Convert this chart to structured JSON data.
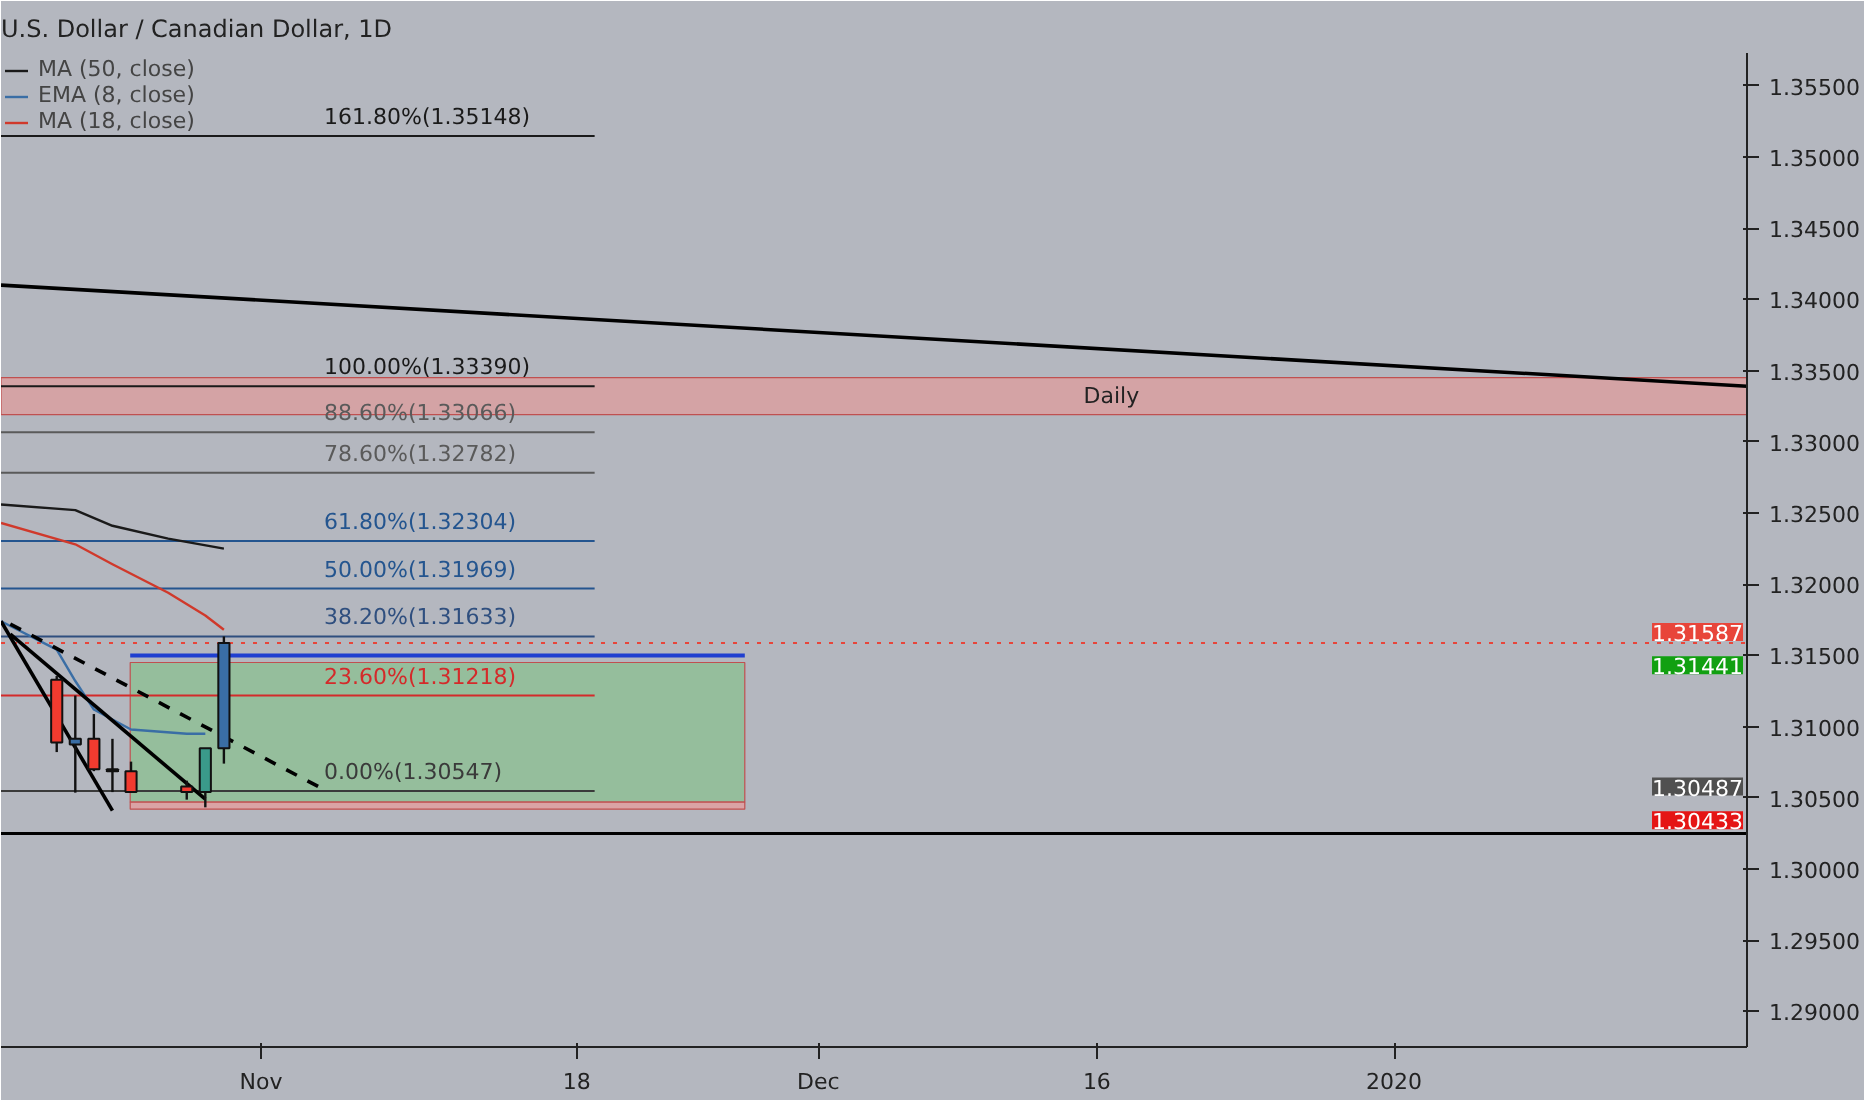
{
  "chart_data": {
    "type": "candlestick",
    "title": "U.S. Dollar / Canadian Dollar, 1D",
    "x": [
      "2019-10-21",
      "2019-10-22",
      "2019-10-23",
      "2019-10-24",
      "2019-10-25",
      "2019-10-28",
      "2019-10-29",
      "2019-10-30"
    ],
    "ohlc": [
      [
        1.31329,
        1.31355,
        1.30821,
        1.30888
      ],
      [
        1.30874,
        1.31218,
        1.30536,
        1.30914
      ],
      [
        1.30914,
        1.31088,
        1.30687,
        1.307
      ],
      [
        1.307,
        1.30914,
        1.3054,
        1.30687
      ],
      [
        1.30687,
        1.30754,
        1.30536,
        1.3054
      ],
      [
        1.3058,
        1.3062,
        1.30487,
        1.3054
      ],
      [
        1.3054,
        1.30848,
        1.30433,
        1.30848
      ],
      [
        1.30848,
        1.31633,
        1.3074,
        1.31587
      ]
    ],
    "colors": [
      "#f23b2f",
      "#3a6ea5",
      "#f23b2f",
      "#f23b2f",
      "#f23b2f",
      "#f23b2f",
      "#3a9a8a",
      "#3a6ea5"
    ],
    "series": [
      {
        "name": "MA (50, close)",
        "type": "line",
        "color": "#1a1a1a",
        "x": [
          "2019-10-18",
          "2019-10-22",
          "2019-10-24",
          "2019-10-27",
          "2019-10-30"
        ],
        "values": [
          1.3256,
          1.3252,
          1.3241,
          1.3232,
          1.3225
        ]
      },
      {
        "name": "EMA (8, close)",
        "type": "line",
        "color": "#3a6ea5",
        "x": [
          "2019-10-18",
          "2019-10-21",
          "2019-10-22",
          "2019-10-23",
          "2019-10-25",
          "2019-10-28",
          "2019-10-29"
        ],
        "values": [
          1.3174,
          1.3154,
          1.3132,
          1.3112,
          1.3098,
          1.3095,
          1.3095
        ]
      },
      {
        "name": "MA (18, close)",
        "type": "line",
        "color": "#d0392b",
        "x": [
          "2019-10-18",
          "2019-10-22",
          "2019-10-24",
          "2019-10-27",
          "2019-10-29",
          "2019-10-30"
        ],
        "values": [
          1.3243,
          1.3228,
          1.3214,
          1.3194,
          1.3178,
          1.3168
        ]
      },
      {
        "type": "line",
        "color": "#000000",
        "x": [
          "2019-10-18",
          "2020-01-20"
        ],
        "values": [
          1.341,
          1.3339
        ]
      },
      {
        "type": "line",
        "color": "#000000",
        "x": [
          "2019-10-18",
          "2019-10-24"
        ],
        "values": [
          1.3174,
          1.3041
        ]
      },
      {
        "type": "line",
        "color": "#000000",
        "x": [
          "2019-10-18T12:00",
          "2019-10-29"
        ],
        "values": [
          1.3165,
          1.3049
        ]
      },
      {
        "type": "line",
        "color": "#000000",
        "line_style": "dashed",
        "x": [
          "2019-10-18T12:00",
          "2019-11-04T12:00"
        ],
        "values": [
          1.3172,
          1.3055
        ]
      }
    ],
    "xlim": [
      "2019-10-18",
      "2020-01-20"
    ],
    "xticks": [
      {
        "value": "2019-11-01",
        "label": "Nov"
      },
      {
        "value": "2019-11-18",
        "label": "18"
      },
      {
        "value": "2019-12-01",
        "label": "Dec"
      },
      {
        "value": "2019-12-16",
        "label": "16"
      },
      {
        "value": "2020-01-01",
        "label": "2020"
      }
    ],
    "ylim": [
      1.2875,
      1.3573
    ],
    "yticks": [
      {
        "value": 1.29,
        "label": "1.29000"
      },
      {
        "value": 1.295,
        "label": "1.29500"
      },
      {
        "value": 1.3,
        "label": "1.30000"
      },
      {
        "value": 1.305,
        "label": "1.30500"
      },
      {
        "value": 1.31,
        "label": "1.31000"
      },
      {
        "value": 1.315,
        "label": "1.31500"
      },
      {
        "value": 1.32,
        "label": "1.32000"
      },
      {
        "value": 1.325,
        "label": "1.32500"
      },
      {
        "value": 1.33,
        "label": "1.33000"
      },
      {
        "value": 1.335,
        "label": "1.33500"
      },
      {
        "value": 1.34,
        "label": "1.34000"
      },
      {
        "value": 1.345,
        "label": "1.34500"
      },
      {
        "value": 1.35,
        "label": "1.35000"
      },
      {
        "value": 1.355,
        "label": "1.35500"
      }
    ],
    "ref_lines": [
      {
        "axis": "y",
        "value": 1.35148,
        "label": "161.80%(1.35148)",
        "color": "#1a1a1a"
      },
      {
        "axis": "y",
        "value": 1.3339,
        "label": "100.00%(1.33390)",
        "color": "#1a1a1a"
      },
      {
        "axis": "y",
        "value": 1.33066,
        "label": "88.60%(1.33066)",
        "color": "#5a5a5a"
      },
      {
        "axis": "y",
        "value": 1.32782,
        "label": "78.60%(1.32782)",
        "color": "#5a5a5a"
      },
      {
        "axis": "y",
        "value": 1.32304,
        "label": "61.80%(1.32304)",
        "color": "#24558f"
      },
      {
        "axis": "y",
        "value": 1.31969,
        "label": "50.00%(1.31969)",
        "color": "#24558f"
      },
      {
        "axis": "y",
        "value": 1.31633,
        "label": "38.20%(1.31633)",
        "color": "#2f4f7f"
      },
      {
        "axis": "y",
        "value": 1.31218,
        "label": "23.60%(1.31218)",
        "color": "#d42a2a"
      },
      {
        "axis": "y",
        "value": 1.30547,
        "label": "0.00%(1.30547)",
        "color": "#3a3a3a"
      },
      {
        "axis": "y",
        "value": 1.31587,
        "label": "1.31587",
        "color": "#e8453a",
        "line_style": "dotted"
      },
      {
        "axis": "y",
        "value": 1.315,
        "color": "#1f3fd0"
      },
      {
        "axis": "y",
        "value": 1.3025,
        "color": "#000000"
      }
    ],
    "bands": [
      {
        "axis": "y",
        "from": 1.3319,
        "to": 1.3345,
        "label": "Daily",
        "color": "#d9a0a0"
      },
      {
        "axis": "y",
        "from": 1.3047,
        "to": 1.3145,
        "color": "#8fbf95"
      },
      {
        "axis": "y",
        "from": 1.3042,
        "to": 1.3047,
        "color": "#e0a0a0"
      }
    ],
    "legend": "top left",
    "annotations": [
      "1.31441",
      "1.30487",
      "1.30433"
    ]
  }
}
